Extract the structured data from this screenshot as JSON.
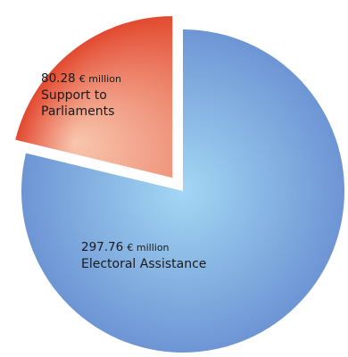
{
  "chart_data": {
    "type": "pie",
    "unit": "€ million",
    "series": [
      {
        "name": "Electoral Assistance",
        "value": 297.76,
        "value_text": "297.76",
        "color_inner": "#a3d7f4",
        "color_outer": "#6d95d4"
      },
      {
        "name": "Support to Parliaments",
        "value": 80.28,
        "value_text": "80.28",
        "color_inner": "#f8c6ae",
        "color_outer": "#e2492f",
        "exploded": true,
        "name_lines": [
          "Support to",
          "Parliaments"
        ]
      }
    ]
  }
}
